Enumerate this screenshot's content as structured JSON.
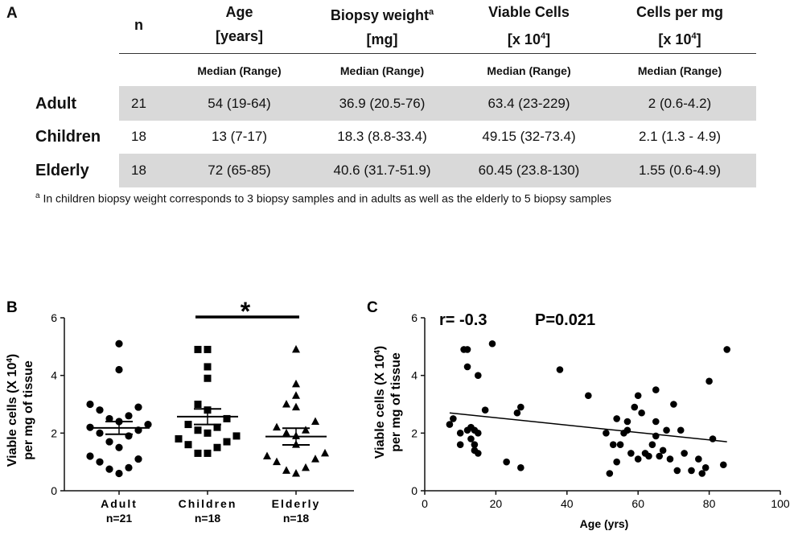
{
  "table": {
    "panel_label": "A",
    "header": {
      "n": "n",
      "age_line1": "Age",
      "age_line2": "[years]",
      "weight_line1": "Biopsy weight",
      "weight_sup": "a",
      "weight_line2": "[mg]",
      "viable_line1": "Viable Cells",
      "viable_line2_pre": "[x 10",
      "viable_line2_sup": "4",
      "viable_line2_post": "]",
      "cpm_line1": "Cells per mg",
      "cpm_line2_pre": "[x 10",
      "cpm_line2_sup": "4",
      "cpm_line2_post": "]"
    },
    "subheader": "Median (Range)",
    "rows": [
      {
        "label": "Adult",
        "n": "21",
        "age": "54 (19-64)",
        "weight": "36.9 (20.5-76)",
        "viable": "63.4 (23-229)",
        "cpm": "2 (0.6-4.2)"
      },
      {
        "label": "Children",
        "n": "18",
        "age": "13 (7-17)",
        "weight": "18.3 (8.8-33.4)",
        "viable": "49.15 (32-73.4)",
        "cpm": "2.1 (1.3 - 4.9)"
      },
      {
        "label": "Elderly",
        "n": "18",
        "age": "72 (65-85)",
        "weight": "40.6 (31.7-51.9)",
        "viable": "60.45 (23.8-130)",
        "cpm": "1.55 (0.6-4.9)"
      }
    ],
    "footnote_sup": "a",
    "footnote": "In children biopsy weight corresponds to 3 biopsy samples and in adults as well as the elderly to 5 biopsy samples"
  },
  "chart_data": [
    {
      "panel": "B",
      "type": "scatter",
      "ylabel_line1_pre": "Viable cells (X 10",
      "ylabel_line1_sup": "4",
      "ylabel_line1_post": ")",
      "ylabel_line2": "per mg of tissue",
      "ylim": [
        0,
        6
      ],
      "yticks": [
        "0",
        "2",
        "4",
        "6"
      ],
      "significance": "*",
      "groups": [
        {
          "name": "Adult",
          "n_label": "n=21",
          "marker": "circle",
          "mean": 2.18,
          "sem": 0.22,
          "values": [
            5.1,
            4.2,
            3.0,
            2.9,
            2.5,
            2.8,
            2.4,
            2.6,
            2.3,
            2.1,
            2.0,
            2.2,
            1.9,
            1.7,
            1.5,
            1.1,
            1.0,
            0.8,
            0.6,
            0.75,
            1.2
          ]
        },
        {
          "name": "Children",
          "n_label": "n=18",
          "marker": "square",
          "mean": 2.57,
          "sem": 0.27,
          "values": [
            4.9,
            4.9,
            4.3,
            3.9,
            3.0,
            2.8,
            2.5,
            2.3,
            2.2,
            2.0,
            2.1,
            1.9,
            1.8,
            1.7,
            1.6,
            1.5,
            1.3,
            1.3
          ]
        },
        {
          "name": "Elderly",
          "n_label": "n=18",
          "marker": "triangle",
          "mean": 1.88,
          "sem": 0.29,
          "values": [
            4.9,
            3.7,
            3.3,
            3.0,
            2.9,
            2.4,
            2.2,
            2.1,
            2.0,
            1.9,
            1.6,
            1.3,
            1.2,
            1.1,
            1.0,
            0.8,
            0.7,
            0.6
          ]
        }
      ]
    },
    {
      "panel": "C",
      "type": "scatter",
      "stats_r": "r= -0.3",
      "stats_p": "P=0.021",
      "xlabel": "Age (yrs)",
      "ylabel_line1_pre": "Viable cells (X 10",
      "ylabel_line1_sup": "4",
      "ylabel_line1_post": ")",
      "ylabel_line2": "per mg of tissue",
      "xlim": [
        0,
        100
      ],
      "ylim": [
        0,
        6
      ],
      "xticks": [
        "0",
        "20",
        "40",
        "60",
        "80",
        "100"
      ],
      "yticks": [
        "0",
        "2",
        "4",
        "6"
      ],
      "regression": {
        "x1": 7,
        "y1": 2.7,
        "x2": 85,
        "y2": 1.7
      },
      "points": [
        [
          7,
          2.3
        ],
        [
          8,
          2.5
        ],
        [
          10,
          1.6
        ],
        [
          10,
          2.0
        ],
        [
          11,
          4.9
        ],
        [
          12,
          4.9
        ],
        [
          12,
          4.3
        ],
        [
          12,
          2.1
        ],
        [
          13,
          2.2
        ],
        [
          13,
          1.8
        ],
        [
          14,
          2.1
        ],
        [
          14,
          1.6
        ],
        [
          14,
          1.4
        ],
        [
          15,
          4.0
        ],
        [
          15,
          2.0
        ],
        [
          15,
          1.3
        ],
        [
          17,
          2.8
        ],
        [
          19,
          5.1
        ],
        [
          23,
          1.0
        ],
        [
          26,
          2.7
        ],
        [
          27,
          2.9
        ],
        [
          27,
          0.8
        ],
        [
          38,
          4.2
        ],
        [
          46,
          3.3
        ],
        [
          51,
          2.0
        ],
        [
          52,
          0.6
        ],
        [
          53,
          1.6
        ],
        [
          54,
          2.5
        ],
        [
          54,
          1.0
        ],
        [
          55,
          1.6
        ],
        [
          56,
          2.0
        ],
        [
          57,
          2.1
        ],
        [
          57,
          2.4
        ],
        [
          58,
          1.3
        ],
        [
          59,
          2.9
        ],
        [
          60,
          3.3
        ],
        [
          60,
          1.1
        ],
        [
          61,
          2.7
        ],
        [
          62,
          1.3
        ],
        [
          63,
          1.2
        ],
        [
          64,
          1.6
        ],
        [
          65,
          2.4
        ],
        [
          65,
          1.9
        ],
        [
          65,
          3.5
        ],
        [
          66,
          1.2
        ],
        [
          67,
          1.4
        ],
        [
          68,
          2.1
        ],
        [
          69,
          1.1
        ],
        [
          70,
          3.0
        ],
        [
          71,
          0.7
        ],
        [
          72,
          2.1
        ],
        [
          73,
          1.3
        ],
        [
          75,
          0.7
        ],
        [
          77,
          1.1
        ],
        [
          78,
          0.6
        ],
        [
          79,
          0.8
        ],
        [
          80,
          3.8
        ],
        [
          81,
          1.8
        ],
        [
          84,
          0.9
        ],
        [
          85,
          4.9
        ]
      ]
    }
  ]
}
